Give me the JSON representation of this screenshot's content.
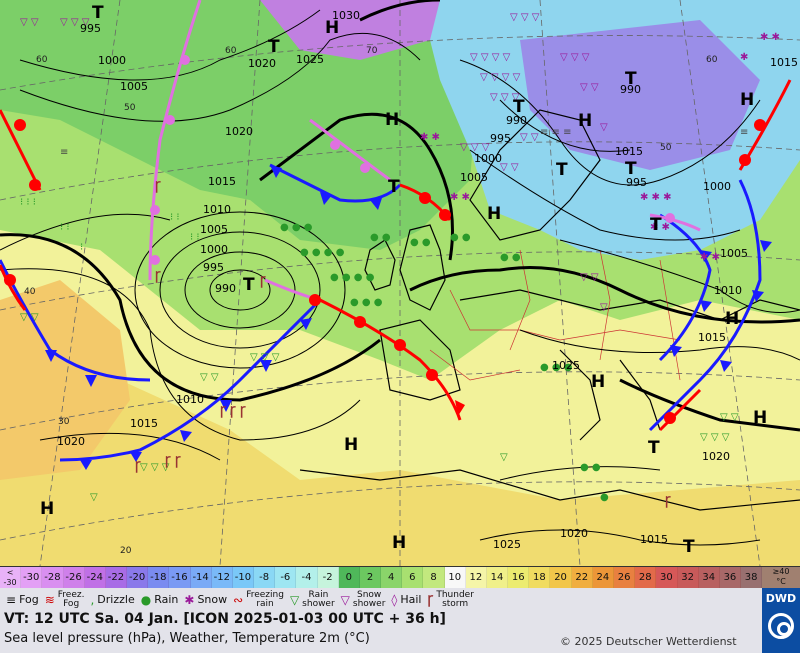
{
  "map": {
    "pressure_labels": [
      {
        "text": "995"
      },
      {
        "text": "1000"
      },
      {
        "text": "1005"
      },
      {
        "text": "1020"
      },
      {
        "text": "1025"
      },
      {
        "text": "1030"
      },
      {
        "text": "1020"
      },
      {
        "text": "1015"
      },
      {
        "text": "1010"
      },
      {
        "text": "1005"
      },
      {
        "text": "1000"
      },
      {
        "text": "995"
      },
      {
        "text": "990"
      },
      {
        "text": "995"
      },
      {
        "text": "1000"
      },
      {
        "text": "1005"
      },
      {
        "text": "990"
      },
      {
        "text": "990"
      },
      {
        "text": "995"
      },
      {
        "text": "1000"
      },
      {
        "text": "1005"
      },
      {
        "text": "1010"
      },
      {
        "text": "1015"
      },
      {
        "text": "1015"
      },
      {
        "text": "1010"
      },
      {
        "text": "1015"
      },
      {
        "text": "1020"
      },
      {
        "text": "1025"
      },
      {
        "text": "1020"
      },
      {
        "text": "1015"
      },
      {
        "text": "1025"
      },
      {
        "text": "1020"
      },
      {
        "text": "1015"
      }
    ],
    "pressure_centers": [
      {
        "text": "T"
      },
      {
        "text": "H"
      },
      {
        "text": "T"
      },
      {
        "text": "H"
      },
      {
        "text": "T"
      },
      {
        "text": "T"
      },
      {
        "text": "H"
      },
      {
        "text": "T"
      },
      {
        "text": "T"
      },
      {
        "text": "H"
      },
      {
        "text": "H"
      },
      {
        "text": "T"
      },
      {
        "text": "T"
      },
      {
        "text": "H"
      },
      {
        "text": "H"
      },
      {
        "text": "H"
      },
      {
        "text": "H"
      },
      {
        "text": "H"
      },
      {
        "text": "T"
      },
      {
        "text": "T"
      },
      {
        "text": "H"
      },
      {
        "text": "T"
      }
    ],
    "lat_labels": [
      "60",
      "50",
      "40",
      "30",
      "20",
      "60",
      "70",
      "60",
      "50"
    ],
    "colors": {
      "cold_front": "#1a1aff",
      "warm_front": "#ff0000",
      "occlusion": "#e070e0",
      "isobar": "#000000"
    }
  },
  "temperature_scale": {
    "first": {
      "top": "<",
      "bottom": "-30"
    },
    "values": [
      "-30",
      "-28",
      "-26",
      "-24",
      "-22",
      "-20",
      "-18",
      "-16",
      "-14",
      "-12",
      "-10",
      "-8",
      "-6",
      "-4",
      "-2",
      "0",
      "2",
      "4",
      "6",
      "8",
      "10",
      "12",
      "14",
      "16",
      "18",
      "20",
      "22",
      "24",
      "26",
      "28",
      "30",
      "32",
      "34",
      "36",
      "38"
    ],
    "colors": [
      "#e3a0f5",
      "#d98ff0",
      "#cf80ea",
      "#c070e6",
      "#a86ce6",
      "#8a79ea",
      "#7a8bf0",
      "#7a9af4",
      "#7aaaf6",
      "#7ab9f8",
      "#7ac8f8",
      "#8ad8f5",
      "#9ee6f2",
      "#b3f0ea",
      "#c6f4dc",
      "#4fb85a",
      "#6cc860",
      "#8ad46a",
      "#a8e070",
      "#c2e87e",
      "#f8f8f8",
      "#f5f5a8",
      "#f0f08a",
      "#ecec70",
      "#f0dc60",
      "#f2c64a",
      "#f0ae40",
      "#ec9638",
      "#e88040",
      "#e26a4a",
      "#d65858",
      "#c85a5a",
      "#b86060",
      "#a86868",
      "#987070"
    ],
    "unit_top": "≥40",
    "unit_bottom": "°C"
  },
  "legend": {
    "fog": "Fog",
    "freezing_fog": [
      "Freez.",
      "Fog"
    ],
    "drizzle": "Drizzle",
    "rain": "Rain",
    "snow": "Snow",
    "freezing_rain": [
      "Freezing",
      "rain"
    ],
    "rain_shower": [
      "Rain",
      "shower"
    ],
    "snow_shower": [
      "Snow",
      "shower"
    ],
    "hail": "Hail",
    "thunderstorm": [
      "Thunder",
      "storm"
    ]
  },
  "footer": {
    "valid_time": "VT: 12 UTC Sa.   04 Jan. [ICON 2025-01-03  00 UTC + 36 h]",
    "description": "Sea level pressure (hPa), Weather, Temperature 2m (°C)",
    "copyright": "© 2025 Deutscher Wetterdienst",
    "logo_text": "DWD"
  }
}
